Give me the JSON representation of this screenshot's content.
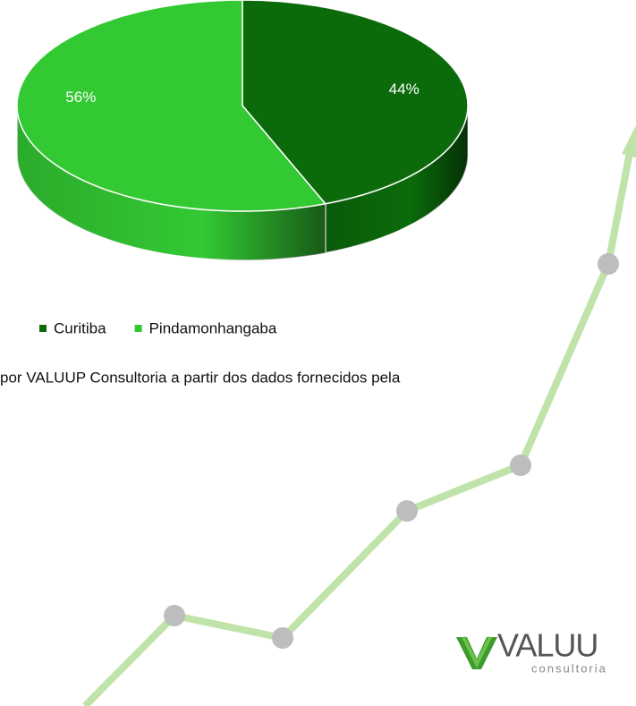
{
  "chart_data": {
    "type": "pie",
    "categories": [
      "Curitiba",
      "Pindamonhangaba"
    ],
    "values": [
      44,
      56
    ],
    "value_labels": [
      "44%",
      "56%"
    ],
    "colors": [
      "#0b6b0b",
      "#33c933"
    ],
    "legend": "bottom"
  },
  "source": "por VALUUP Consultoria a partir dos dados fornecidos pela",
  "logo": {
    "text": "VALUU",
    "subtext": "consultoria"
  }
}
